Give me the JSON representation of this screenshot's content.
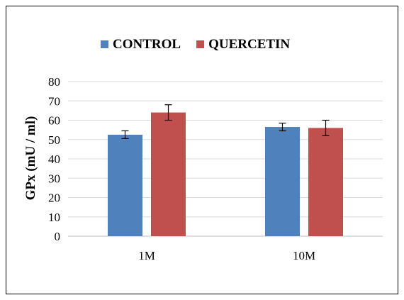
{
  "chart_data": {
    "type": "bar",
    "title": "",
    "xlabel": "",
    "ylabel": "GPx (mU / ml)",
    "categories": [
      "1M",
      "10M"
    ],
    "series": [
      {
        "name": "CONTROL",
        "color": "#4f81bd",
        "values": [
          52.5,
          56.5
        ],
        "errors": [
          2.0,
          2.0
        ]
      },
      {
        "name": "QUERCETIN",
        "color": "#c0504d",
        "values": [
          64.0,
          56.0
        ],
        "errors": [
          4.0,
          4.0
        ]
      }
    ],
    "ylim": [
      0,
      80
    ],
    "yticks": [
      "0",
      "10",
      "20",
      "30",
      "40",
      "50",
      "60",
      "70",
      "80"
    ],
    "grid": true,
    "legend_position": "top"
  }
}
